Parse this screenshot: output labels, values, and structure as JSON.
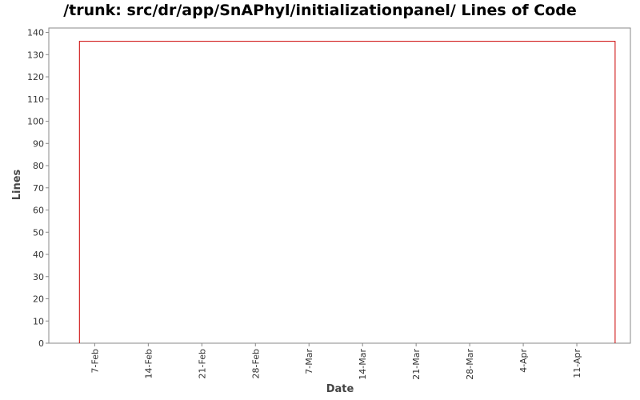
{
  "chart_data": {
    "type": "line",
    "title": "/trunk: src/dr/app/SnAPhyl/initializationpanel/ Lines of Code",
    "xlabel": "Date",
    "ylabel": "Lines",
    "ylim": [
      0,
      142
    ],
    "yticks": [
      0,
      10,
      20,
      30,
      40,
      50,
      60,
      70,
      80,
      90,
      100,
      110,
      120,
      130,
      140
    ],
    "xlim": [
      "2010-02-01",
      "2010-04-18"
    ],
    "xticks": [
      {
        "date": "2010-02-07",
        "label": "7-Feb"
      },
      {
        "date": "2010-02-14",
        "label": "14-Feb"
      },
      {
        "date": "2010-02-21",
        "label": "21-Feb"
      },
      {
        "date": "2010-02-28",
        "label": "28-Feb"
      },
      {
        "date": "2010-03-07",
        "label": "7-Mar"
      },
      {
        "date": "2010-03-14",
        "label": "14-Mar"
      },
      {
        "date": "2010-03-21",
        "label": "21-Mar"
      },
      {
        "date": "2010-03-28",
        "label": "28-Mar"
      },
      {
        "date": "2010-04-04",
        "label": "4-Apr"
      },
      {
        "date": "2010-04-11",
        "label": "11-Apr"
      }
    ],
    "grid": false,
    "series": [
      {
        "color": "#cc0000",
        "points": [
          {
            "x": "2010-02-05",
            "y": 0
          },
          {
            "x": "2010-02-05",
            "y": 136
          },
          {
            "x": "2010-04-16",
            "y": 136
          },
          {
            "x": "2010-04-16",
            "y": 0
          }
        ]
      }
    ]
  }
}
